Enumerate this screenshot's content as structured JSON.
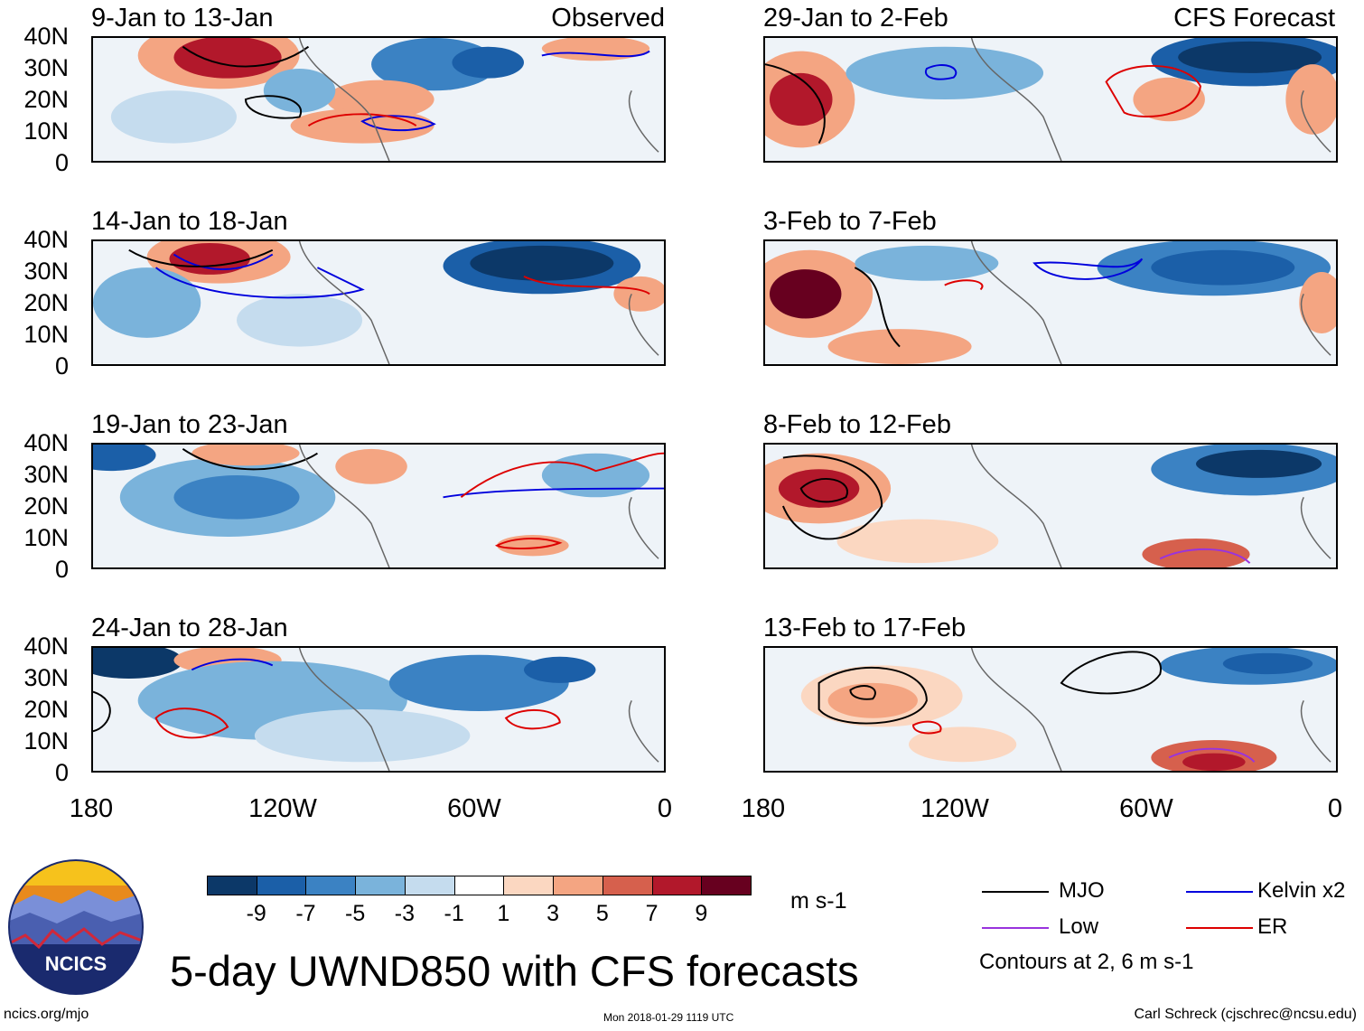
{
  "axes": {
    "lat_labels": [
      "40N",
      "30N",
      "20N",
      "10N",
      "0"
    ],
    "lon_labels": [
      "180",
      "120W",
      "60W",
      "0"
    ]
  },
  "panels_left": [
    {
      "title": "9-Jan to 13-Jan",
      "label": "Observed"
    },
    {
      "title": "14-Jan to 18-Jan",
      "label": ""
    },
    {
      "title": "19-Jan to 23-Jan",
      "label": ""
    },
    {
      "title": "24-Jan to 28-Jan",
      "label": ""
    }
  ],
  "panels_right": [
    {
      "title": "29-Jan to 2-Feb",
      "label": "CFS Forecast"
    },
    {
      "title": "3-Feb to 7-Feb",
      "label": ""
    },
    {
      "title": "8-Feb to 12-Feb",
      "label": ""
    },
    {
      "title": "13-Feb to 17-Feb",
      "label": ""
    }
  ],
  "colorbar": {
    "colors": [
      "#0c3868",
      "#1b5fa8",
      "#3b82c3",
      "#7ab3db",
      "#c5dcee",
      "#ffffff",
      "#fbd7c1",
      "#f4a582",
      "#d6604d",
      "#b2182b",
      "#67001f"
    ],
    "labels": [
      "-9",
      "-7",
      "-5",
      "-3",
      "-1",
      "1",
      "3",
      "5",
      "7",
      "9"
    ],
    "units": "m s-1"
  },
  "legend": {
    "items": [
      {
        "name": "MJO",
        "color": "#000000"
      },
      {
        "name": "Kelvin x2",
        "color": "#0000dd"
      },
      {
        "name": "Low",
        "color": "#9933dd"
      },
      {
        "name": "ER",
        "color": "#dd0000"
      }
    ],
    "note": "Contours at 2, 6 m s-1"
  },
  "logo": {
    "text": "NCICS"
  },
  "main_title": "5-day UWND850 with CFS forecasts",
  "footer": {
    "left": "ncics.org/mjo",
    "center": "Mon 2018-01-29 1119 UTC",
    "right": "Carl Schreck (cjschrec@ncsu.edu)"
  }
}
